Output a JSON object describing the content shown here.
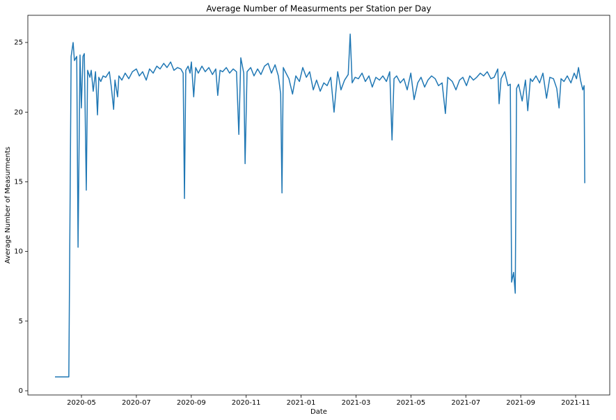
{
  "chart_data": {
    "type": "line",
    "title": "Average Number of Measurments per Station per Day",
    "x_label": "Date",
    "y_label": "Average Number of Measurments",
    "x": [
      2020.253,
      2020.295,
      2020.302,
      2020.308,
      2020.312,
      2020.319,
      2020.323,
      2020.329,
      2020.333,
      2020.338,
      2020.342,
      2020.348,
      2020.352,
      2020.359,
      2020.363,
      2020.369,
      2020.376,
      2020.382,
      2020.386,
      2020.392,
      2020.399,
      2020.407,
      2020.418,
      2020.424,
      2020.431,
      2020.435,
      2020.443,
      2020.447,
      2020.456,
      2020.466,
      2020.477,
      2020.488,
      2020.5,
      2020.509,
      2020.519,
      2020.53,
      2020.54,
      2020.551,
      2020.562,
      2020.572,
      2020.583,
      2020.593,
      2020.604,
      2020.614,
      2020.625,
      2020.635,
      2020.642,
      2020.646,
      2020.65,
      2020.657,
      2020.663,
      2020.667,
      2020.674,
      2020.68,
      2020.688,
      2020.699,
      2020.709,
      2020.72,
      2020.731,
      2020.741,
      2020.747,
      2020.754,
      2020.762,
      2020.773,
      2020.783,
      2020.794,
      2020.804,
      2020.811,
      2020.817,
      2020.826,
      2020.83,
      2020.836,
      2020.847,
      2020.857,
      2020.868,
      2020.878,
      2020.889,
      2020.9,
      2020.91,
      2020.921,
      2020.931,
      2020.938,
      2020.942,
      2020.946,
      2020.952,
      2020.963,
      2020.974,
      2020.984,
      2020.995,
      2021.005,
      2021.016,
      2021.026,
      2021.037,
      2021.047,
      2021.058,
      2021.069,
      2021.079,
      2021.09,
      2021.1,
      2021.111,
      2021.121,
      2021.132,
      2021.143,
      2021.149,
      2021.155,
      2021.164,
      2021.174,
      2021.185,
      2021.195,
      2021.206,
      2021.216,
      2021.227,
      2021.238,
      2021.248,
      2021.259,
      2021.269,
      2021.276,
      2021.282,
      2021.29,
      2021.301,
      2021.312,
      2021.322,
      2021.333,
      2021.343,
      2021.354,
      2021.364,
      2021.375,
      2021.385,
      2021.396,
      2021.407,
      2021.417,
      2021.428,
      2021.438,
      2021.445,
      2021.459,
      2021.47,
      2021.481,
      2021.491,
      2021.502,
      2021.512,
      2021.523,
      2021.533,
      2021.544,
      2021.554,
      2021.565,
      2021.576,
      2021.586,
      2021.597,
      2021.601,
      2021.607,
      2021.618,
      2021.628,
      2021.635,
      2021.639,
      2021.645,
      2021.65,
      2021.654,
      2021.66,
      2021.671,
      2021.681,
      2021.688,
      2021.696,
      2021.702,
      2021.713,
      2021.724,
      2021.734,
      2021.745,
      2021.755,
      2021.766,
      2021.776,
      2021.783,
      2021.789,
      2021.798,
      2021.808,
      2021.819,
      2021.829,
      2021.836,
      2021.842,
      2021.848,
      2021.855,
      2021.859,
      2021.861
    ],
    "series": [
      {
        "color": "#1f77b4",
        "values": [
          1.0,
          1.0,
          24.0,
          25.0,
          23.7,
          24.0,
          10.3,
          24.1,
          20.3,
          24.0,
          24.2,
          14.4,
          23.0,
          22.5,
          23.0,
          21.5,
          22.9,
          19.8,
          22.5,
          22.2,
          22.6,
          22.5,
          22.9,
          21.8,
          20.2,
          22.3,
          21.1,
          22.6,
          22.3,
          22.8,
          22.4,
          22.9,
          23.1,
          22.6,
          22.9,
          22.3,
          23.1,
          22.8,
          23.3,
          23.1,
          23.5,
          23.2,
          23.6,
          23.0,
          23.2,
          23.1,
          22.8,
          13.8,
          23.0,
          23.3,
          22.8,
          23.6,
          21.1,
          23.2,
          22.8,
          23.3,
          22.9,
          23.2,
          22.7,
          23.1,
          21.2,
          23.0,
          22.9,
          23.2,
          22.8,
          23.1,
          22.9,
          18.4,
          23.9,
          22.8,
          16.3,
          22.9,
          23.2,
          22.6,
          23.1,
          22.7,
          23.3,
          23.5,
          22.8,
          23.4,
          22.6,
          21.3,
          14.2,
          23.2,
          22.9,
          22.4,
          21.3,
          22.6,
          22.2,
          23.2,
          22.5,
          22.9,
          21.6,
          22.3,
          21.5,
          22.1,
          21.9,
          22.5,
          20.0,
          22.9,
          21.6,
          22.3,
          22.7,
          25.6,
          22.1,
          22.5,
          22.4,
          22.8,
          22.2,
          22.6,
          21.8,
          22.5,
          22.3,
          22.6,
          22.2,
          22.9,
          18.0,
          22.4,
          22.6,
          22.1,
          22.4,
          21.6,
          22.8,
          20.9,
          22.1,
          22.5,
          21.8,
          22.3,
          22.6,
          22.4,
          21.9,
          22.1,
          19.9,
          22.5,
          22.2,
          21.6,
          22.3,
          22.5,
          21.9,
          22.6,
          22.3,
          22.5,
          22.8,
          22.6,
          22.9,
          22.4,
          22.5,
          23.1,
          20.6,
          22.4,
          22.9,
          21.9,
          22.0,
          7.8,
          8.5,
          7.0,
          21.7,
          22.0,
          20.8,
          22.3,
          20.1,
          22.4,
          22.2,
          22.6,
          22.1,
          22.8,
          21.0,
          22.5,
          22.4,
          21.7,
          20.3,
          22.4,
          22.2,
          22.6,
          22.1,
          22.8,
          22.4,
          23.2,
          22.3,
          21.6,
          21.9,
          14.9
        ]
      }
    ],
    "xlim": [
      2020.1706,
      2021.9368
    ],
    "xticks": [
      {
        "value": 2020.3333,
        "label": "2020-05"
      },
      {
        "value": 2020.5,
        "label": "2020-07"
      },
      {
        "value": 2020.6667,
        "label": "2020-09"
      },
      {
        "value": 2020.8333,
        "label": "2020-11"
      },
      {
        "value": 2021.0,
        "label": "2021-01"
      },
      {
        "value": 2021.1667,
        "label": "2021-03"
      },
      {
        "value": 2021.3333,
        "label": "2021-05"
      },
      {
        "value": 2021.5,
        "label": "2021-07"
      },
      {
        "value": 2021.6667,
        "label": "2021-09"
      },
      {
        "value": 2021.8333,
        "label": "2021-11"
      }
    ],
    "ylim": [
      -0.3,
      26.95
    ],
    "yticks": [
      0,
      5,
      10,
      15,
      20,
      25
    ],
    "grid": false
  }
}
